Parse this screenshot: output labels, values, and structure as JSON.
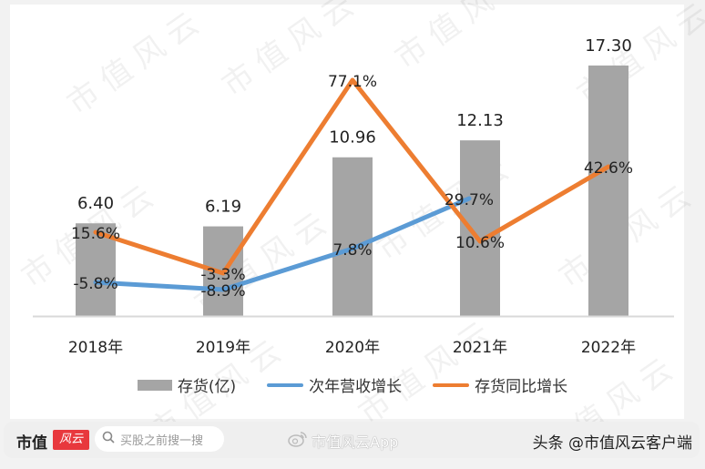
{
  "chart_data": {
    "type": "bar",
    "title": "",
    "xlabel": "",
    "ylabel": "",
    "categories": [
      "2018年",
      "2019年",
      "2020年",
      "2021年",
      "2022年"
    ],
    "series": [
      {
        "name": "存货(亿)",
        "type": "bar",
        "color": "#a5a5a5",
        "values": [
          6.4,
          6.19,
          10.96,
          12.13,
          17.3
        ],
        "labels": [
          "6.40",
          "6.19",
          "10.96",
          "12.13",
          "17.30"
        ]
      },
      {
        "name": "次年营收增长",
        "type": "line",
        "color": "#5b9bd5",
        "values": [
          -5.8,
          -8.9,
          7.8,
          29.7,
          null
        ],
        "labels": [
          "-5.8%",
          "-8.9%",
          "7.8%",
          "29.7%",
          ""
        ]
      },
      {
        "name": "存货同比增长",
        "type": "line",
        "color": "#ed7d31",
        "values": [
          15.6,
          -3.3,
          77.1,
          10.6,
          42.6
        ],
        "labels": [
          "15.6%",
          "-3.3%",
          "77.1%",
          "10.6%",
          "42.6%"
        ]
      }
    ],
    "grid": false,
    "legend_position": "bottom",
    "y_axis_visible": false
  },
  "legend": {
    "items": [
      {
        "label": "存货(亿)",
        "kind": "bar",
        "color": "#a5a5a5"
      },
      {
        "label": "次年营收增长",
        "kind": "line",
        "color": "#5b9bd5"
      },
      {
        "label": "存货同比增长",
        "kind": "line",
        "color": "#ed7d31"
      }
    ]
  },
  "watermark": {
    "text": "市值风云"
  },
  "footer": {
    "brand_text": "市值",
    "brand_badge": "风云",
    "search_icon": "search-icon",
    "search_placeholder": "买股之前搜一搜",
    "weibo_icon": "weibo-icon",
    "weibo_text": "市值风云App",
    "toutiao_text": "头条 @市值风云客户端"
  }
}
